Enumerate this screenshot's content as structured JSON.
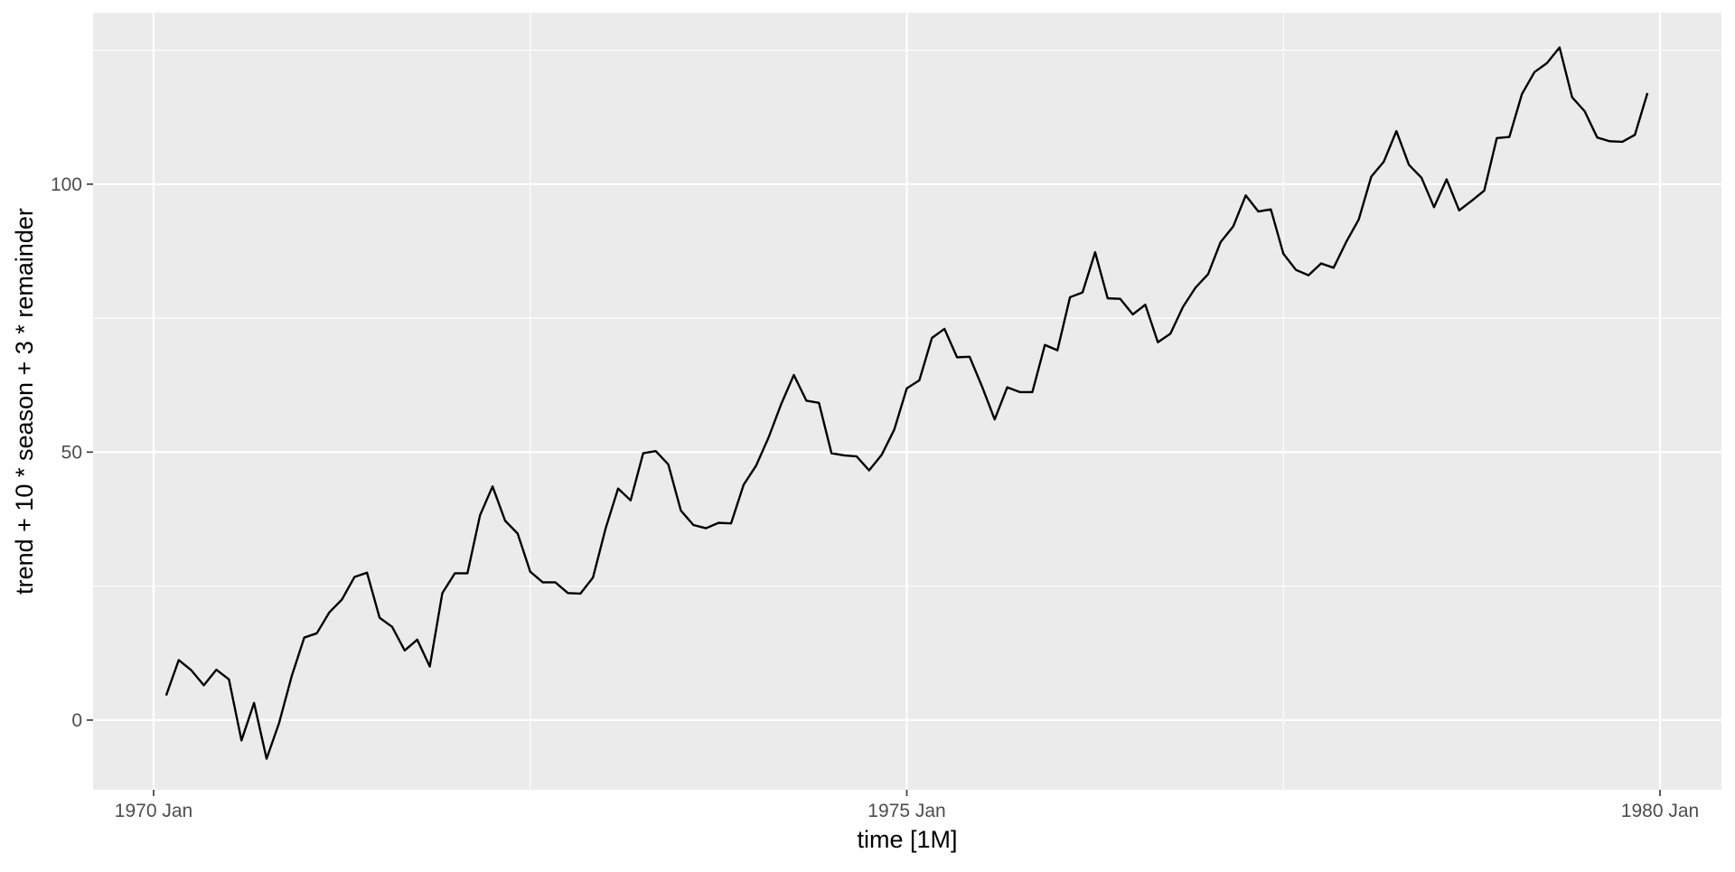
{
  "chart_data": {
    "type": "line",
    "xlabel": "time [1M]",
    "ylabel": "trend + 10 * season + 3 * remainder",
    "x_ticks": [
      "1970 Jan",
      "1975 Jan",
      "1980 Jan"
    ],
    "y_ticks": [
      0,
      50,
      100
    ],
    "xlim": [
      0,
      120
    ],
    "ylim": [
      -13,
      132
    ],
    "grid": true,
    "background": "#EBEBEB",
    "grid_color": "#FFFFFF",
    "line_color": "#000000",
    "series": [
      {
        "start": "1970 Feb",
        "values": [
          4.6,
          11.2,
          9.3,
          6.5,
          9.4,
          7.6,
          -3.8,
          3.2,
          -7.2,
          -0.5,
          8.2,
          15.4,
          16.2,
          20.1,
          22.5,
          26.7,
          27.5,
          19.1,
          17.4,
          13.0,
          15.0,
          10.0,
          23.7,
          27.4,
          27.4,
          38.2,
          43.6,
          37.2,
          34.8,
          27.7,
          25.7,
          25.7,
          23.7,
          23.6,
          26.6,
          35.7,
          43.2,
          41.0,
          49.8,
          50.2,
          47.7,
          39.1,
          36.4,
          35.8,
          36.8,
          36.7,
          43.9,
          47.5,
          52.8,
          59.0,
          64.4,
          59.6,
          59.2,
          49.8,
          49.4,
          49.2,
          46.6,
          49.5,
          54.2,
          61.9,
          63.4,
          71.3,
          73.0,
          67.7,
          67.8,
          62.2,
          56.1,
          62.1,
          61.2,
          61.2,
          70.0,
          69.0,
          78.9,
          79.8,
          87.3,
          78.7,
          78.6,
          75.7,
          77.5,
          70.5,
          72.1,
          77.1,
          80.7,
          83.2,
          89.2,
          92.1,
          97.9,
          94.9,
          95.3,
          87.0,
          84.0,
          83.0,
          85.2,
          84.4,
          89.2,
          93.4,
          101.4,
          104.2,
          109.9,
          103.6,
          101.2,
          95.7,
          100.9,
          95.1,
          96.9,
          98.8,
          108.6,
          108.8,
          116.8,
          120.9,
          122.6,
          125.5,
          116.2,
          113.6,
          108.7,
          108.0,
          107.9,
          109.2,
          117.0
        ]
      }
    ]
  }
}
